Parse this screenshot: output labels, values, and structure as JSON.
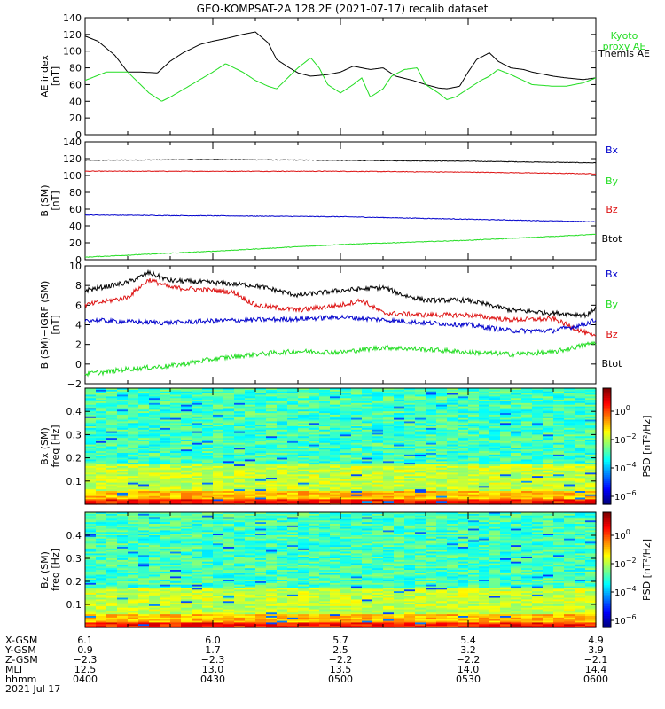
{
  "title": "GEO-KOMPSAT-2A 128.2E (2021-07-17) recalib dataset",
  "colors": {
    "black": "#000000",
    "green": "#22dd22",
    "blue": "#0000cc",
    "red": "#dd1111"
  },
  "chart_data": [
    {
      "type": "line",
      "panel": "ae",
      "ylabel": [
        "AE index",
        "[nT]"
      ],
      "ylim": [
        0,
        140
      ],
      "yticks": [
        0,
        20,
        40,
        60,
        80,
        100,
        120,
        140
      ],
      "x_range_minutes": [
        0,
        120
      ],
      "legend": [
        {
          "name": "Kyoto proxy AE",
          "lines": [
            "Kyoto",
            "proxy AE"
          ],
          "color": "#22dd22"
        },
        {
          "name": "Themis AE",
          "lines": [
            "Themis AE"
          ],
          "color": "#000000"
        }
      ],
      "series": [
        {
          "name": "Themis AE",
          "color": "#000000",
          "x": [
            0,
            3,
            7,
            10,
            13,
            17,
            20,
            23,
            27,
            30,
            33,
            37,
            40,
            43,
            45,
            48,
            50,
            53,
            57,
            60,
            63,
            65,
            67,
            70,
            73,
            77,
            80,
            83,
            85,
            88,
            90,
            92,
            95,
            97,
            100,
            103,
            105,
            108,
            110,
            113,
            117,
            120
          ],
          "y": [
            118,
            112,
            95,
            75,
            75,
            74,
            88,
            98,
            108,
            112,
            115,
            120,
            123,
            110,
            90,
            80,
            74,
            70,
            72,
            75,
            82,
            80,
            78,
            80,
            70,
            65,
            60,
            56,
            55,
            58,
            75,
            90,
            98,
            88,
            80,
            78,
            75,
            72,
            70,
            68,
            66,
            68
          ]
        },
        {
          "name": "Kyoto proxy AE",
          "color": "#22dd22",
          "x": [
            0,
            5,
            10,
            15,
            18,
            20,
            25,
            30,
            33,
            37,
            40,
            43,
            45,
            50,
            53,
            55,
            57,
            60,
            63,
            65,
            67,
            70,
            72,
            75,
            78,
            80,
            83,
            85,
            87,
            90,
            93,
            95,
            97,
            100,
            105,
            110,
            113,
            117,
            120
          ],
          "y": [
            65,
            75,
            75,
            50,
            40,
            45,
            60,
            75,
            85,
            75,
            65,
            58,
            55,
            80,
            92,
            80,
            60,
            50,
            60,
            68,
            45,
            55,
            70,
            78,
            80,
            60,
            50,
            42,
            45,
            55,
            65,
            70,
            78,
            72,
            60,
            58,
            58,
            62,
            68
          ]
        }
      ]
    },
    {
      "type": "line",
      "panel": "b_sm",
      "ylabel": [
        "B (SM)",
        "[nT]"
      ],
      "ylim": [
        0,
        140
      ],
      "yticks": [
        0,
        20,
        40,
        60,
        80,
        100,
        120,
        140
      ],
      "x_range_minutes": [
        0,
        120
      ],
      "legend": [
        {
          "name": "Bx",
          "color": "#0000cc"
        },
        {
          "name": "By",
          "color": "#22dd22"
        },
        {
          "name": "Bz",
          "color": "#dd1111"
        },
        {
          "name": "Btot",
          "color": "#000000"
        }
      ],
      "series": [
        {
          "name": "Btot",
          "color": "#000000",
          "x": [
            0,
            30,
            60,
            90,
            120
          ],
          "y": [
            118,
            119,
            118,
            117,
            115
          ]
        },
        {
          "name": "Bz",
          "color": "#dd1111",
          "x": [
            0,
            30,
            60,
            90,
            120
          ],
          "y": [
            105,
            105,
            105,
            104,
            102
          ]
        },
        {
          "name": "Bx",
          "color": "#0000cc",
          "x": [
            0,
            30,
            60,
            90,
            120
          ],
          "y": [
            53,
            52,
            51,
            48,
            45
          ]
        },
        {
          "name": "By",
          "color": "#22dd22",
          "x": [
            0,
            30,
            60,
            90,
            120
          ],
          "y": [
            3,
            10,
            18,
            23,
            30
          ]
        }
      ]
    },
    {
      "type": "line",
      "panel": "db",
      "ylabel": [
        "B (SM)−IGRF (SM)",
        "[nT]"
      ],
      "ylim": [
        -2,
        10
      ],
      "yticks": [
        -2,
        0,
        2,
        4,
        6,
        8,
        10
      ],
      "x_range_minutes": [
        0,
        120
      ],
      "legend": [
        {
          "name": "Bx",
          "color": "#0000cc"
        },
        {
          "name": "By",
          "color": "#22dd22"
        },
        {
          "name": "Bz",
          "color": "#dd1111"
        },
        {
          "name": "Btot",
          "color": "#000000"
        }
      ],
      "series": [
        {
          "name": "Btot",
          "color": "#000000",
          "x": [
            0,
            10,
            15,
            20,
            30,
            40,
            45,
            50,
            60,
            70,
            75,
            80,
            90,
            100,
            110,
            118,
            120
          ],
          "y": [
            7.5,
            8.3,
            9.3,
            8.5,
            8.3,
            8.0,
            7.5,
            7.0,
            7.5,
            7.8,
            7.0,
            6.5,
            6.5,
            5.5,
            5.2,
            5.0,
            5.8
          ]
        },
        {
          "name": "Bz",
          "color": "#dd1111",
          "x": [
            0,
            10,
            15,
            20,
            30,
            35,
            40,
            50,
            60,
            65,
            70,
            80,
            90,
            100,
            110,
            120
          ],
          "y": [
            6.0,
            6.8,
            8.6,
            7.8,
            7.5,
            7.3,
            6.0,
            5.5,
            6.0,
            6.5,
            5.2,
            5.0,
            5.0,
            4.5,
            4.6,
            2.7
          ]
        },
        {
          "name": "Bx",
          "color": "#0000cc",
          "x": [
            0,
            10,
            20,
            30,
            40,
            50,
            60,
            70,
            80,
            90,
            100,
            110,
            117,
            120
          ],
          "y": [
            4.5,
            4.3,
            4.2,
            4.4,
            4.5,
            4.6,
            4.8,
            4.5,
            4.2,
            4.0,
            3.4,
            3.4,
            4.0,
            4.5
          ]
        },
        {
          "name": "By",
          "color": "#22dd22",
          "x": [
            0,
            5,
            10,
            20,
            30,
            40,
            50,
            60,
            70,
            80,
            90,
            100,
            110,
            120
          ],
          "y": [
            -1.0,
            -0.8,
            -0.5,
            -0.2,
            0.5,
            1.0,
            1.3,
            1.2,
            1.7,
            1.5,
            1.2,
            1.0,
            1.2,
            2.2
          ]
        }
      ]
    },
    {
      "type": "heatmap",
      "panel": "bx_spec",
      "ylabel": [
        "Bx (SM)",
        "freq [Hz]"
      ],
      "ylim": [
        0,
        0.5
      ],
      "yticks": [
        0.1,
        0.2,
        0.3,
        0.4
      ],
      "ytick_labels": [
        "0.1",
        "0.2",
        "0.3",
        "0.4"
      ],
      "colorbar": {
        "label": "PSD [nT²/Hz]",
        "ticks": [
          {
            "base": "10",
            "exp": "0"
          },
          {
            "base": "10",
            "exp": "−2"
          },
          {
            "base": "10",
            "exp": "−4"
          },
          {
            "base": "10",
            "exp": "−6"
          }
        ]
      }
    },
    {
      "type": "heatmap",
      "panel": "bz_spec",
      "ylabel": [
        "Bz (SM)",
        "freq [Hz]"
      ],
      "ylim": [
        0,
        0.5
      ],
      "yticks": [
        0.1,
        0.2,
        0.3,
        0.4
      ],
      "ytick_labels": [
        "0.1",
        "0.2",
        "0.3",
        "0.4"
      ],
      "colorbar": {
        "label": "PSD [nT²/Hz]",
        "ticks": [
          {
            "base": "10",
            "exp": "0"
          },
          {
            "base": "10",
            "exp": "−2"
          },
          {
            "base": "10",
            "exp": "−4"
          },
          {
            "base": "10",
            "exp": "−6"
          }
        ]
      }
    }
  ],
  "ephemeris": {
    "labels": [
      "X-GSM",
      "Y-GSM",
      "Z-GSM",
      "MLT",
      "hhmm"
    ],
    "columns": [
      [
        "6.1",
        "0.9",
        "−2.3",
        "12.5",
        "0400"
      ],
      [
        "6.0",
        "1.7",
        "−2.3",
        "13.0",
        "0430"
      ],
      [
        "5.7",
        "2.5",
        "−2.2",
        "13.5",
        "0500"
      ],
      [
        "5.4",
        "3.2",
        "−2.2",
        "14.0",
        "0530"
      ],
      [
        "4.9",
        "3.9",
        "−2.1",
        "14.4",
        "0600"
      ]
    ],
    "date": "2021 Jul 17"
  }
}
